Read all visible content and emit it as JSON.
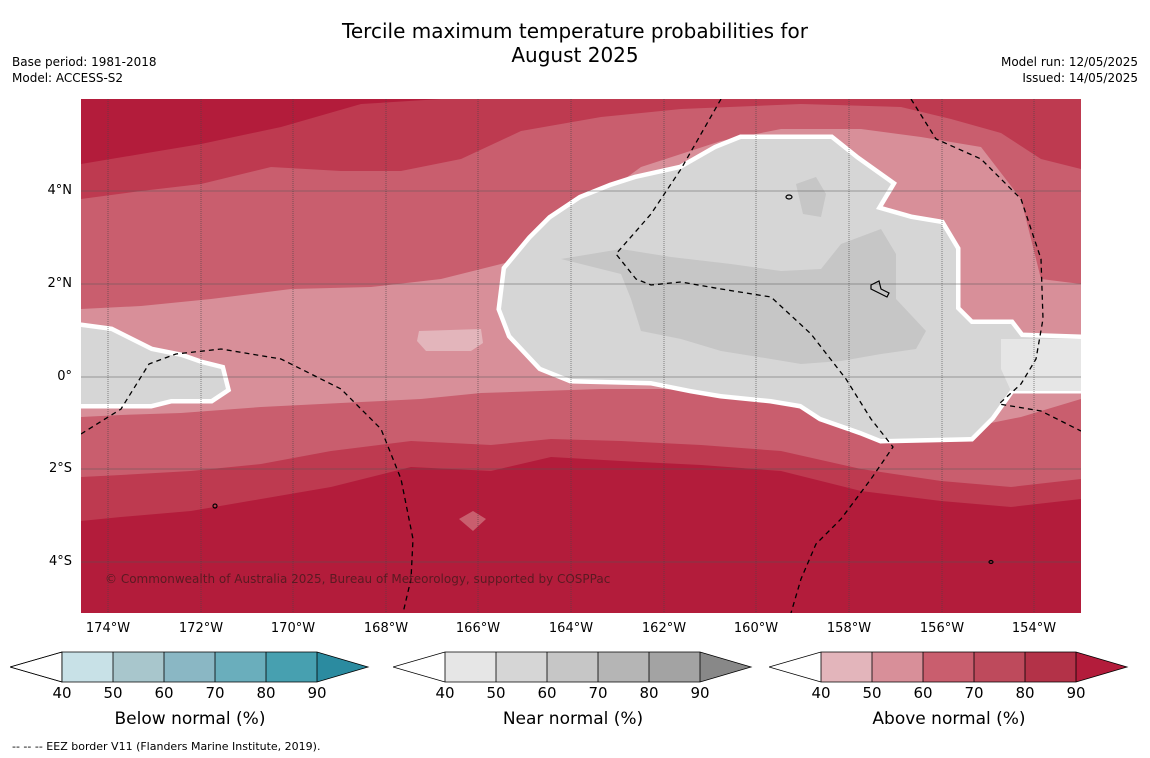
{
  "header": {
    "title_line1": "Tercile maximum temperature probabilities for",
    "title_line2": "August 2025",
    "base_period": "Base period: 1981-2018",
    "model": "Model: ACCESS-S2",
    "model_run": "Model run: 12/05/2025",
    "issued": "Issued: 14/05/2025"
  },
  "map": {
    "lat_labels": [
      "4°N",
      "2°N",
      "0°",
      "2°S",
      "4°S"
    ],
    "lon_labels": [
      "174°W",
      "172°W",
      "170°W",
      "168°W",
      "166°W",
      "164°W",
      "162°W",
      "160°W",
      "158°W",
      "156°W",
      "154°W"
    ],
    "copyright": "© Commonwealth of Australia 2025, Bureau of Meteorology, supported by COSPPac",
    "colors": {
      "above_70_80": "#c95e6e",
      "above_80_90": "#be3a50",
      "above_90": "#b31c3b",
      "above_50_60": "#d88f99",
      "above_40_50": "#e3b5bb",
      "near_50_60": "#d6d6d6",
      "near_60_70": "#c6c6c6",
      "near_40_50": "#e6e6e6"
    }
  },
  "legend": {
    "ticks": [
      "40",
      "50",
      "60",
      "70",
      "80",
      "90"
    ],
    "below": {
      "label": "Below normal (%)",
      "colors": [
        "#ffffff",
        "#c8e1e7",
        "#a8c6cc",
        "#8ab7c4",
        "#6aaebc",
        "#47a0b0",
        "#2b8ba0"
      ]
    },
    "near": {
      "label": "Near normal (%)",
      "colors": [
        "#ffffff",
        "#e6e6e6",
        "#d6d6d6",
        "#c6c6c6",
        "#b5b5b5",
        "#a3a3a3",
        "#888888"
      ]
    },
    "above": {
      "label": "Above normal (%)",
      "colors": [
        "#ffffff",
        "#e3b5bb",
        "#d88f99",
        "#c95e6e",
        "#be4a5c",
        "#b33248",
        "#b31c3b"
      ]
    }
  },
  "footer": {
    "eez_note": "--  --  -- EEZ border V11 (Flanders Marine Institute, 2019)."
  }
}
